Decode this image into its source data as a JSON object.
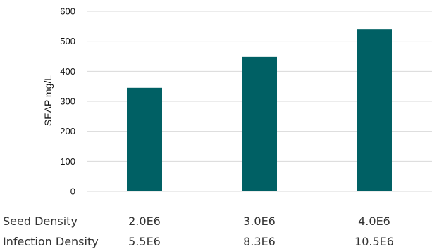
{
  "chart_data": {
    "type": "bar",
    "categories": [
      "2.0E6",
      "3.0E6",
      "4.0E6"
    ],
    "category_rows": [
      {
        "label": "Seed Density",
        "values": [
          "2.0E6",
          "3.0E6",
          "4.0E6"
        ]
      },
      {
        "label": "Infection Density",
        "values": [
          "5.5E6",
          "8.3E6",
          "10.5E6"
        ]
      }
    ],
    "values": [
      345,
      448,
      541
    ],
    "title": "",
    "xlabel": "",
    "ylabel": "SEAP mg/L",
    "ylim": [
      0,
      600
    ],
    "yticks": [
      0,
      100,
      200,
      300,
      400,
      500,
      600
    ],
    "grid": true,
    "legend": "none",
    "bar_color": "#006064"
  }
}
